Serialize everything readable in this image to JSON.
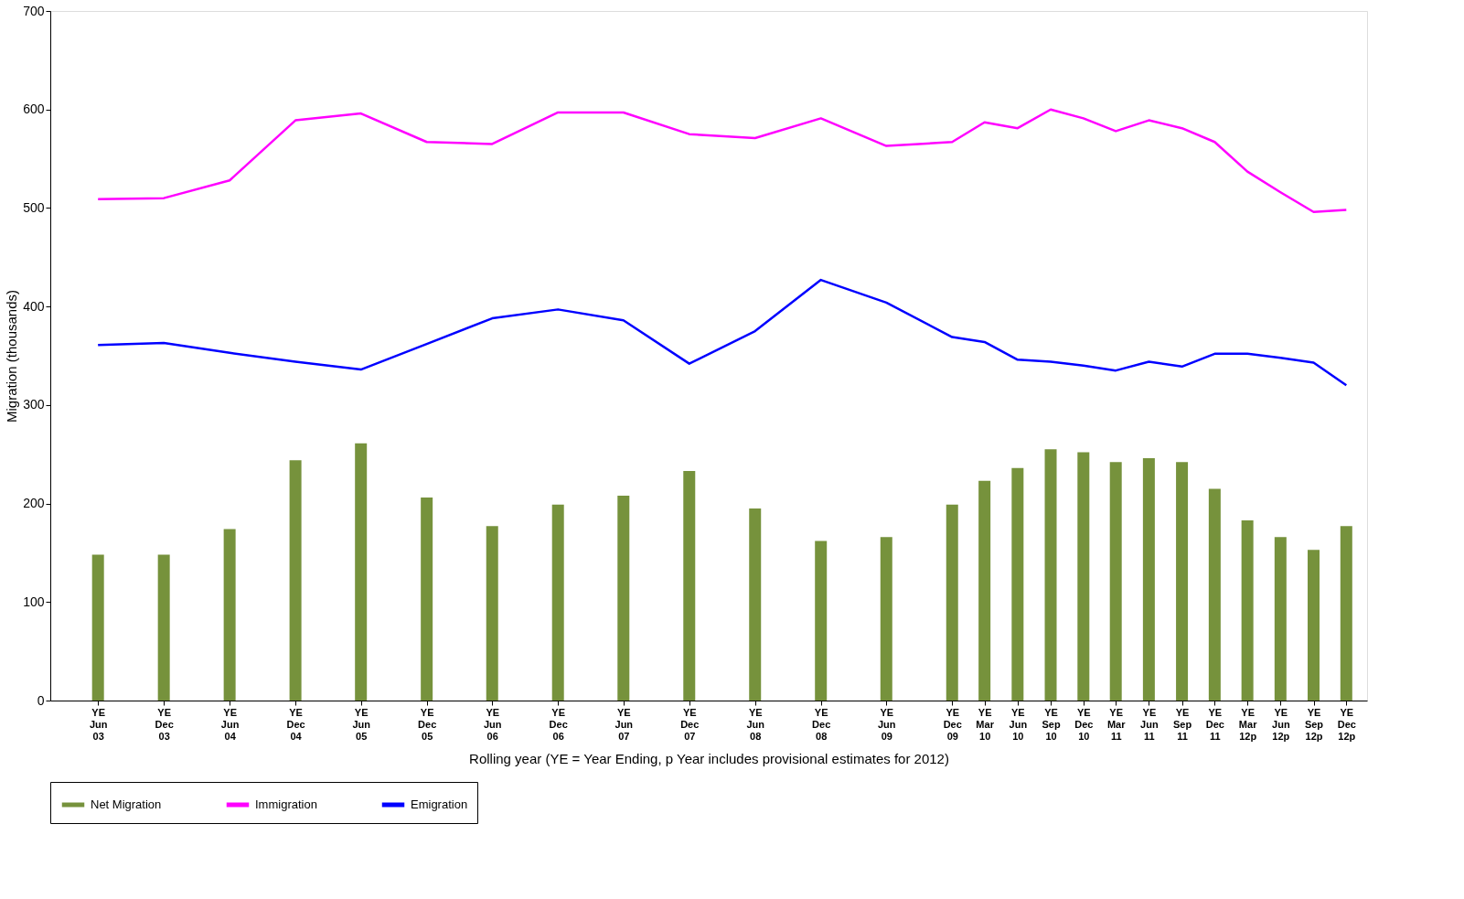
{
  "chart_data": {
    "type": "bar",
    "xlabel": "Rolling  year (YE = Year Ending,    p  Year includes provisional estimates for 2012)",
    "ylabel": "Migration (thousands)",
    "x": [
      "2003-06",
      "2003-12",
      "2004-06",
      "2004-12",
      "2005-06",
      "2005-12",
      "2006-06",
      "2006-12",
      "2007-06",
      "2007-12",
      "2008-06",
      "2008-12",
      "2009-06",
      "2009-12",
      "2010-03",
      "2010-06",
      "2010-09",
      "2010-12",
      "2011-03",
      "2011-06",
      "2011-09",
      "2011-12",
      "2012-03",
      "2012-06",
      "2012-09",
      "2012-12"
    ],
    "xlim": [
      "2003-02",
      "2013-01-15"
    ],
    "xticks": [
      {
        "value": "2003-06",
        "label": "YE Jun 03"
      },
      {
        "value": "2003-12",
        "label": "YE Dec 03"
      },
      {
        "value": "2004-06",
        "label": "YE Jun 04"
      },
      {
        "value": "2004-12",
        "label": "YE Dec 04"
      },
      {
        "value": "2005-06",
        "label": "YE Jun 05"
      },
      {
        "value": "2005-12",
        "label": "YE Dec 05"
      },
      {
        "value": "2006-06",
        "label": "YE Jun 06"
      },
      {
        "value": "2006-12",
        "label": "YE Dec 06"
      },
      {
        "value": "2007-06",
        "label": "YE Jun 07"
      },
      {
        "value": "2007-12",
        "label": "YE Dec 07"
      },
      {
        "value": "2008-06",
        "label": "YE Jun 08"
      },
      {
        "value": "2008-12",
        "label": "YE Dec 08"
      },
      {
        "value": "2009-06",
        "label": "YE Jun 09"
      },
      {
        "value": "2009-12",
        "label": "YE Dec 09"
      },
      {
        "value": "2010-03",
        "label": "YE Mar 10"
      },
      {
        "value": "2010-06",
        "label": "YE Jun 10"
      },
      {
        "value": "2010-09",
        "label": "YE Sep 10"
      },
      {
        "value": "2010-12",
        "label": "YE Dec 10"
      },
      {
        "value": "2011-03",
        "label": "YE Mar 11"
      },
      {
        "value": "2011-06",
        "label": "YE Jun 11"
      },
      {
        "value": "2011-09",
        "label": "YE Sep 11"
      },
      {
        "value": "2011-12",
        "label": "YE Dec 11"
      },
      {
        "value": "2012-03",
        "label": "YE Mar 12p"
      },
      {
        "value": "2012-06",
        "label": "YE Jun 12p"
      },
      {
        "value": "2012-09",
        "label": "YE Sep 12p"
      },
      {
        "value": "2012-12",
        "label": "YE Dec 12p"
      }
    ],
    "ylim": [
      0,
      700
    ],
    "yticks": [
      0,
      100,
      200,
      300,
      400,
      500,
      600,
      700
    ],
    "grid": false,
    "legend": "bottom",
    "series": [
      {
        "name": "Net Migration",
        "color": "#76923c",
        "values": [
          148,
          148,
          174,
          244,
          261,
          206,
          177,
          199,
          208,
          233,
          195,
          162,
          166,
          199,
          223,
          236,
          255,
          252,
          242,
          246,
          242,
          215,
          183,
          166,
          153,
          177
        ]
      },
      {
        "name": "Immigration",
        "type": "line",
        "color": "#ff00ff",
        "values": [
          509,
          510,
          528,
          589,
          596,
          567,
          565,
          597,
          597,
          575,
          571,
          591,
          563,
          567,
          587,
          581,
          600,
          591,
          578,
          589,
          581,
          567,
          537,
          516,
          496,
          498
        ]
      },
      {
        "name": "Emigration",
        "type": "line",
        "color": "#0000ff",
        "values": [
          361,
          363,
          353,
          344,
          336,
          362,
          388,
          397,
          386,
          342,
          375,
          427,
          404,
          369,
          364,
          346,
          344,
          340,
          335,
          344,
          339,
          352,
          352,
          348,
          343,
          320
        ]
      }
    ]
  }
}
